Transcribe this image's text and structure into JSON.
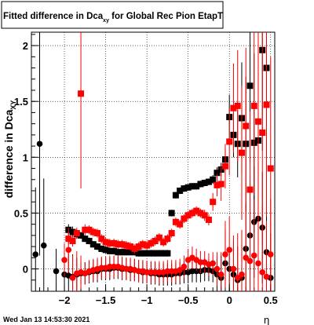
{
  "title": "Fitted difference in Dca",
  "title_sub": "xy",
  "title_suffix": " for Global Rec Pion EtapT",
  "footer_timestamp": "Wed Jan 13 14:53:30 2021",
  "chart_data": {
    "type": "scatter",
    "title": "Fitted difference in Dca_xy for Global Rec Pion EtapT",
    "xlabel": "η",
    "ylabel": "difference in Dca",
    "ylabel_sub": "XY",
    "xlim": [
      -2.4,
      0.55
    ],
    "ylim": [
      -0.2,
      2.12
    ],
    "grid": true,
    "x_ticks": [
      -2,
      -1.5,
      -1,
      -0.5,
      0,
      0.5
    ],
    "x_tick_labels": [
      "−2",
      "−1.5",
      "−1",
      "−0.5",
      "0",
      "0.5"
    ],
    "y_ticks": [
      0,
      0.5,
      1,
      1.5,
      2
    ],
    "y_tick_labels": [
      "0",
      "0.5",
      "1",
      "1.5",
      "2"
    ],
    "series": [
      {
        "color": "#000000",
        "marker": "circle",
        "points": [
          [
            -2.35,
            0.13,
            0.6
          ],
          [
            -2.3,
            1.12,
            1.0
          ],
          [
            -2.25,
            0.21,
            0.6
          ],
          [
            -2.1,
            -0.02,
            0.2
          ],
          [
            -2.0,
            -0.05,
            0.2
          ],
          [
            -1.95,
            -0.06,
            0.2
          ],
          [
            -1.9,
            -0.07,
            0.2
          ],
          [
            -1.85,
            -0.05,
            0.15
          ],
          [
            -1.8,
            -0.04,
            0.1
          ],
          [
            -1.75,
            -0.04,
            0.1
          ],
          [
            -1.7,
            -0.03,
            0.1
          ],
          [
            -1.65,
            -0.02,
            0.1
          ],
          [
            -1.6,
            -0.02,
            0.1
          ],
          [
            -1.55,
            0.0,
            0.1
          ],
          [
            -1.5,
            0.0,
            0.1
          ],
          [
            -1.45,
            0.0,
            0.1
          ],
          [
            -1.4,
            0.01,
            0.1
          ],
          [
            -1.35,
            0.01,
            0.1
          ],
          [
            -1.3,
            0.0,
            0.1
          ],
          [
            -1.25,
            0.0,
            0.1
          ],
          [
            -1.2,
            -0.01,
            0.1
          ],
          [
            -1.15,
            -0.01,
            0.1
          ],
          [
            -1.1,
            -0.02,
            0.1
          ],
          [
            -1.05,
            -0.03,
            0.1
          ],
          [
            -1.0,
            -0.03,
            0.1
          ],
          [
            -0.95,
            -0.04,
            0.1
          ],
          [
            -0.9,
            -0.04,
            0.1
          ],
          [
            -0.85,
            -0.05,
            0.1
          ],
          [
            -0.8,
            -0.05,
            0.1
          ],
          [
            -0.75,
            -0.05,
            0.1
          ],
          [
            -0.7,
            -0.05,
            0.1
          ],
          [
            -0.65,
            -0.04,
            0.1
          ],
          [
            -0.6,
            -0.04,
            0.1
          ],
          [
            -0.55,
            -0.03,
            0.1
          ],
          [
            -0.5,
            -0.03,
            0.1
          ],
          [
            -0.45,
            -0.02,
            0.1
          ],
          [
            -0.4,
            -0.02,
            0.1
          ],
          [
            -0.35,
            -0.02,
            0.1
          ],
          [
            -0.3,
            -0.01,
            0.1
          ],
          [
            -0.25,
            -0.01,
            0.1
          ],
          [
            -0.2,
            -0.02,
            0.1
          ],
          [
            -0.15,
            -0.05,
            0.15
          ],
          [
            -0.1,
            -0.08,
            0.2
          ],
          [
            -0.05,
            0.05,
            0.3
          ],
          [
            0.0,
            0.0,
            0.2
          ],
          [
            0.05,
            -0.05,
            0.3
          ],
          [
            0.1,
            -0.1,
            0.3
          ],
          [
            0.15,
            -0.08,
            0.3
          ],
          [
            0.2,
            0.18,
            0.4
          ],
          [
            0.25,
            0.3,
            0.5
          ],
          [
            0.3,
            0.42,
            0.5
          ],
          [
            0.35,
            0.45,
            0.5
          ],
          [
            0.4,
            0.37,
            0.5
          ],
          [
            0.45,
            0.15,
            0.5
          ],
          [
            0.5,
            -0.08,
            0.4
          ]
        ]
      },
      {
        "color": "#000000",
        "marker": "square",
        "points": [
          [
            -1.95,
            0.35,
            0.05
          ],
          [
            -1.9,
            0.33,
            0.05
          ],
          [
            -1.85,
            0.31,
            0.04
          ],
          [
            -1.8,
            0.3,
            0.03
          ],
          [
            -1.75,
            0.27,
            0.03
          ],
          [
            -1.7,
            0.25,
            0.03
          ],
          [
            -1.65,
            0.22,
            0.03
          ],
          [
            -1.6,
            0.2,
            0.03
          ],
          [
            -1.55,
            0.18,
            0.03
          ],
          [
            -1.5,
            0.17,
            0.03
          ],
          [
            -1.45,
            0.16,
            0.03
          ],
          [
            -1.4,
            0.16,
            0.03
          ],
          [
            -1.35,
            0.15,
            0.03
          ],
          [
            -1.3,
            0.15,
            0.03
          ],
          [
            -1.25,
            0.15,
            0.03
          ],
          [
            -1.2,
            0.15,
            0.03
          ],
          [
            -1.15,
            0.15,
            0.03
          ],
          [
            -1.1,
            0.14,
            0.03
          ],
          [
            -1.05,
            0.14,
            0.03
          ],
          [
            -1.0,
            0.14,
            0.03
          ],
          [
            -0.95,
            0.14,
            0.03
          ],
          [
            -0.9,
            0.14,
            0.03
          ],
          [
            -0.85,
            0.14,
            0.03
          ],
          [
            -0.8,
            0.14,
            0.03
          ],
          [
            -0.75,
            0.14,
            0.03
          ],
          [
            -0.7,
            0.5,
            0.03
          ],
          [
            -0.65,
            0.66,
            0.03
          ],
          [
            -0.6,
            0.7,
            0.03
          ],
          [
            -0.55,
            0.72,
            0.03
          ],
          [
            -0.5,
            0.73,
            0.03
          ],
          [
            -0.45,
            0.74,
            0.03
          ],
          [
            -0.4,
            0.74,
            0.03
          ],
          [
            -0.35,
            0.76,
            0.03
          ],
          [
            -0.3,
            0.77,
            0.03
          ],
          [
            -0.25,
            0.78,
            0.03
          ],
          [
            -0.2,
            0.8,
            0.04
          ],
          [
            -0.15,
            0.86,
            0.05
          ],
          [
            -0.1,
            0.89,
            0.06
          ],
          [
            -0.05,
            0.98,
            0.1
          ],
          [
            0.0,
            1.36,
            0.2
          ],
          [
            0.05,
            1.2,
            0.2
          ],
          [
            0.1,
            1.12,
            0.3
          ],
          [
            0.15,
            1.35,
            0.5
          ],
          [
            0.2,
            1.12,
            0.6
          ],
          [
            0.25,
            1.64,
            0.7
          ],
          [
            0.3,
            1.13,
            0.8
          ],
          [
            0.35,
            1.15,
            0.8
          ],
          [
            0.4,
            1.96,
            0.9
          ],
          [
            0.45,
            1.8,
            1.0
          ]
        ]
      },
      {
        "color": "#ff0000",
        "marker": "circle",
        "points": [
          [
            -2.0,
            0.08,
            0.15
          ],
          [
            -1.95,
            0.17,
            0.2
          ],
          [
            -1.9,
            -0.08,
            0.2
          ],
          [
            -1.85,
            -0.04,
            0.2
          ],
          [
            -1.8,
            -0.03,
            0.15
          ],
          [
            -1.75,
            -0.04,
            0.1
          ],
          [
            -1.7,
            -0.02,
            0.1
          ],
          [
            -1.65,
            -0.01,
            0.1
          ],
          [
            -1.6,
            0.0,
            0.1
          ],
          [
            -1.55,
            0.01,
            0.1
          ],
          [
            -1.5,
            0.01,
            0.1
          ],
          [
            -1.45,
            0.02,
            0.1
          ],
          [
            -1.4,
            0.02,
            0.1
          ],
          [
            -1.35,
            0.02,
            0.1
          ],
          [
            -1.3,
            0.01,
            0.1
          ],
          [
            -1.25,
            0.0,
            0.1
          ],
          [
            -1.2,
            0.0,
            0.1
          ],
          [
            -1.15,
            -0.01,
            0.1
          ],
          [
            -1.1,
            -0.02,
            0.1
          ],
          [
            -1.05,
            -0.02,
            0.1
          ],
          [
            -1.0,
            -0.03,
            0.1
          ],
          [
            -0.95,
            -0.03,
            0.1
          ],
          [
            -0.9,
            -0.03,
            0.1
          ],
          [
            -0.85,
            -0.03,
            0.1
          ],
          [
            -0.8,
            -0.03,
            0.1
          ],
          [
            -0.75,
            -0.02,
            0.1
          ],
          [
            -0.7,
            -0.02,
            0.1
          ],
          [
            -0.65,
            -0.02,
            0.1
          ],
          [
            -0.6,
            -0.01,
            0.1
          ],
          [
            -0.55,
            0.02,
            0.1
          ],
          [
            -0.5,
            0.08,
            0.1
          ],
          [
            -0.45,
            0.1,
            0.1
          ],
          [
            -0.4,
            0.08,
            0.1
          ],
          [
            -0.35,
            0.06,
            0.1
          ],
          [
            -0.3,
            0.06,
            0.1
          ],
          [
            -0.25,
            0.04,
            0.1
          ],
          [
            -0.2,
            0.05,
            0.1
          ],
          [
            -0.15,
            0.0,
            0.15
          ],
          [
            -0.1,
            -0.05,
            0.2
          ],
          [
            -0.05,
            0.13,
            0.3
          ],
          [
            0.0,
            0.17,
            0.3
          ],
          [
            0.05,
            0.0,
            0.3
          ],
          [
            0.1,
            -0.08,
            0.4
          ],
          [
            0.15,
            -0.05,
            0.4
          ],
          [
            0.2,
            0.1,
            0.5
          ],
          [
            0.25,
            0.07,
            0.5
          ],
          [
            0.3,
            0.12,
            0.5
          ],
          [
            0.35,
            0.05,
            0.5
          ],
          [
            0.4,
            -0.03,
            0.6
          ],
          [
            0.45,
            -0.07,
            0.5
          ],
          [
            0.5,
            0.13,
            0.5
          ]
        ]
      },
      {
        "color": "#ff0000",
        "marker": "square",
        "points": [
          [
            -1.95,
            0.27,
            0.05
          ],
          [
            -1.9,
            0.25,
            0.05
          ],
          [
            -1.85,
            0.32,
            0.05
          ],
          [
            -1.8,
            1.57,
            0.85
          ],
          [
            -1.75,
            0.35,
            0.05
          ],
          [
            -1.7,
            0.35,
            0.04
          ],
          [
            -1.65,
            0.33,
            0.04
          ],
          [
            -1.6,
            0.32,
            0.04
          ],
          [
            -1.55,
            0.27,
            0.04
          ],
          [
            -1.5,
            0.24,
            0.04
          ],
          [
            -1.45,
            0.23,
            0.04
          ],
          [
            -1.4,
            0.23,
            0.04
          ],
          [
            -1.35,
            0.22,
            0.04
          ],
          [
            -1.3,
            0.22,
            0.04
          ],
          [
            -1.25,
            0.21,
            0.04
          ],
          [
            -1.2,
            0.2,
            0.04
          ],
          [
            -1.15,
            0.18,
            0.04
          ],
          [
            -1.1,
            0.2,
            0.04
          ],
          [
            -1.05,
            0.22,
            0.04
          ],
          [
            -1.0,
            0.21,
            0.04
          ],
          [
            -0.95,
            0.23,
            0.04
          ],
          [
            -0.9,
            0.25,
            0.04
          ],
          [
            -0.85,
            0.28,
            0.04
          ],
          [
            -0.8,
            0.24,
            0.04
          ],
          [
            -0.75,
            0.27,
            0.04
          ],
          [
            -0.7,
            0.32,
            0.04
          ],
          [
            -0.65,
            0.42,
            0.04
          ],
          [
            -0.6,
            0.4,
            0.04
          ],
          [
            -0.55,
            0.45,
            0.04
          ],
          [
            -0.5,
            0.48,
            0.04
          ],
          [
            -0.45,
            0.5,
            0.04
          ],
          [
            -0.4,
            0.52,
            0.04
          ],
          [
            -0.35,
            0.5,
            0.04
          ],
          [
            -0.3,
            0.48,
            0.05
          ],
          [
            -0.25,
            0.44,
            0.05
          ],
          [
            -0.2,
            0.6,
            0.08
          ],
          [
            -0.15,
            0.75,
            0.1
          ],
          [
            -0.1,
            0.76,
            0.15
          ],
          [
            -0.05,
            0.92,
            0.2
          ],
          [
            0.0,
            1.14,
            0.3
          ],
          [
            0.05,
            1.44,
            0.4
          ],
          [
            0.1,
            1.46,
            0.5
          ],
          [
            0.15,
            1.04,
            0.6
          ],
          [
            0.2,
            1.28,
            0.7
          ],
          [
            0.25,
            0.71,
            0.7
          ],
          [
            0.3,
            1.46,
            0.8
          ],
          [
            0.35,
            1.32,
            0.9
          ],
          [
            0.4,
            1.22,
            1.0
          ],
          [
            0.45,
            1.47,
            1.0
          ],
          [
            0.5,
            0.9,
            1.0
          ]
        ]
      }
    ]
  }
}
